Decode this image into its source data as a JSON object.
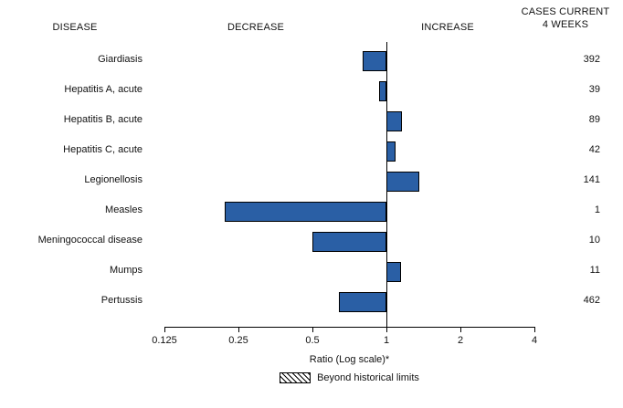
{
  "chart_data": {
    "type": "bar",
    "orientation": "horizontal",
    "scale": "log2",
    "baseline": 1,
    "xlim": [
      0.125,
      4
    ],
    "xlabel": "Ratio (Log scale)*",
    "legend": "Beyond historical limits",
    "bar_color": "#2a5fa5",
    "headers": {
      "disease": "DISEASE",
      "decrease": "DECREASE",
      "increase": "INCREASE",
      "cases_line1": "CASES CURRENT",
      "cases_line2": "4 WEEKS"
    },
    "x_ticks": [
      {
        "value": 0.125,
        "label": "0.125"
      },
      {
        "value": 0.25,
        "label": "0.25"
      },
      {
        "value": 0.5,
        "label": "0.5"
      },
      {
        "value": 1,
        "label": "1"
      },
      {
        "value": 2,
        "label": "2"
      },
      {
        "value": 4,
        "label": "4"
      }
    ],
    "rows": [
      {
        "disease": "Giardiasis",
        "ratio": 0.8,
        "cases": 392,
        "beyond_limits": false
      },
      {
        "disease": "Hepatitis A, acute",
        "ratio": 0.93,
        "cases": 39,
        "beyond_limits": false
      },
      {
        "disease": "Hepatitis B, acute",
        "ratio": 1.16,
        "cases": 89,
        "beyond_limits": false
      },
      {
        "disease": "Hepatitis C, acute",
        "ratio": 1.09,
        "cases": 42,
        "beyond_limits": false
      },
      {
        "disease": "Legionellosis",
        "ratio": 1.36,
        "cases": 141,
        "beyond_limits": false
      },
      {
        "disease": "Measles",
        "ratio": 0.22,
        "cases": 1,
        "beyond_limits": false
      },
      {
        "disease": "Meningococcal disease",
        "ratio": 0.5,
        "cases": 10,
        "beyond_limits": false
      },
      {
        "disease": "Mumps",
        "ratio": 1.15,
        "cases": 11,
        "beyond_limits": false
      },
      {
        "disease": "Pertussis",
        "ratio": 0.64,
        "cases": 462,
        "beyond_limits": false
      }
    ]
  }
}
